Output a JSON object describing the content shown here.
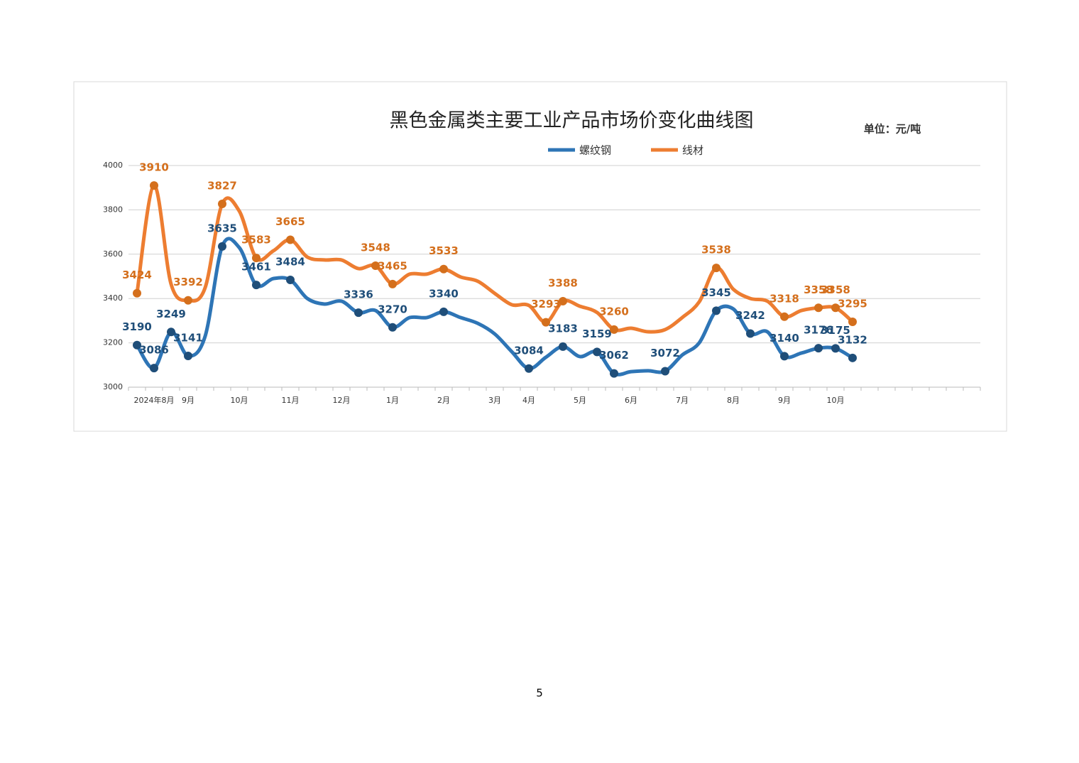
{
  "chart_data": {
    "type": "line",
    "title": "黑色金属类主要工业产品市场价变化曲线图",
    "unit": "单位：元/吨",
    "categories": [
      null,
      "2024年8月",
      null,
      "9月",
      null,
      null,
      "10月",
      null,
      null,
      "11月",
      null,
      null,
      "12月",
      null,
      null,
      "1月",
      null,
      null,
      "2月",
      null,
      null,
      "3月",
      null,
      "4月",
      null,
      null,
      "5月",
      null,
      null,
      "6月",
      null,
      null,
      "7月",
      null,
      null,
      "8月",
      null,
      null,
      "9月",
      null,
      null,
      "10月",
      null,
      null,
      null,
      null,
      null,
      null,
      null,
      null
    ],
    "series": [
      {
        "name": "螺纹钢",
        "color": "#2e75b6",
        "label_color": "#1f4e79",
        "values": [
          3190,
          3086,
          3249,
          3141,
          3230,
          3635,
          3630,
          3461,
          3490,
          3484,
          3400,
          3375,
          3388,
          3336,
          3346,
          3270,
          3314,
          3314,
          3340,
          3314,
          3288,
          3240,
          3160,
          3084,
          3135,
          3183,
          3138,
          3159,
          3062,
          3070,
          3074,
          3072,
          3145,
          3200,
          3345,
          3353,
          3242,
          3250,
          3140,
          3154,
          3176,
          3175,
          3132,
          null,
          null,
          null,
          null,
          null,
          null,
          null
        ],
        "value_labels": [
          "3190",
          "3086",
          "3249",
          "3141",
          null,
          "3635",
          null,
          "3461",
          null,
          "3484",
          null,
          null,
          null,
          "3336",
          null,
          "3270",
          null,
          null,
          "3340",
          null,
          null,
          null,
          null,
          "3084",
          null,
          "3183",
          null,
          "3159",
          "3062",
          null,
          null,
          "3072",
          null,
          null,
          "3345",
          null,
          "3242",
          null,
          "3140",
          null,
          "3176",
          "3175",
          "3132",
          null,
          null,
          null,
          null,
          null,
          null,
          null
        ]
      },
      {
        "name": "线材",
        "color": "#ed7d31",
        "label_color": "#d46f1c",
        "values": [
          3424,
          3910,
          3465,
          3392,
          3449,
          3827,
          3795,
          3583,
          3615,
          3665,
          3587,
          3574,
          3574,
          3535,
          3548,
          3465,
          3510,
          3510,
          3533,
          3497,
          3478,
          3423,
          3372,
          3369,
          3293,
          3388,
          3365,
          3337,
          3260,
          3266,
          3250,
          3260,
          3314,
          3385,
          3538,
          3442,
          3400,
          3388,
          3318,
          3346,
          3358,
          3358,
          3295,
          null,
          null,
          null,
          null,
          null,
          null,
          null
        ],
        "value_labels": [
          "3424",
          "3910",
          null,
          "3392",
          null,
          "3827",
          null,
          "3583",
          null,
          "3665",
          null,
          null,
          null,
          null,
          "3548",
          "3465",
          null,
          null,
          "3533",
          null,
          null,
          null,
          null,
          null,
          "3293",
          "3388",
          null,
          null,
          "3260",
          null,
          null,
          null,
          null,
          null,
          "3538",
          null,
          null,
          null,
          "3318",
          null,
          "3358",
          "3358",
          "3295",
          null,
          null,
          null,
          null,
          null,
          null,
          null
        ]
      }
    ],
    "ylim": [
      3000,
      4000
    ],
    "yticks": [
      3000,
      3200,
      3400,
      3600,
      3800,
      4000
    ],
    "grid": true,
    "legend": "top"
  },
  "page_number": "5"
}
